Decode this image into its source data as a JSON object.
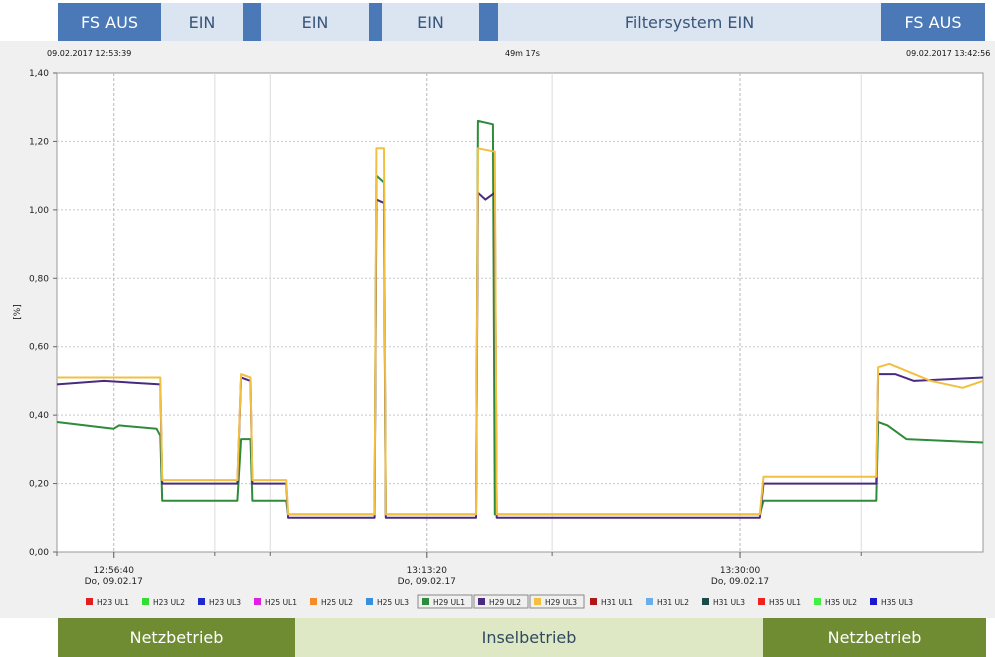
{
  "top_bar": [
    {
      "label": "FS AUS",
      "style": "dark"
    },
    {
      "label": "EIN",
      "style": "light"
    },
    {
      "label": "EIN",
      "style": "light"
    },
    {
      "label": "EIN",
      "style": "light"
    },
    {
      "label": "Filtersystem EIN",
      "style": "light"
    },
    {
      "label": "FS AUS",
      "style": "dark"
    }
  ],
  "bottom_bar": [
    {
      "label": "Netzbetrieb",
      "style": "green"
    },
    {
      "label": "Inselbetrieb",
      "style": "lgreen"
    },
    {
      "label": "Netzbetrieb",
      "style": "green"
    }
  ],
  "header": {
    "start": "09.02.2017 12:53:39",
    "duration": "49m 17s",
    "end": "09.02.2017 13:42:56"
  },
  "chart_data": {
    "type": "line",
    "ylabel": "[%]",
    "ylim": [
      0,
      1.4
    ],
    "y_ticks": [
      "0,00",
      "0,20",
      "0,40",
      "0,60",
      "0,80",
      "1,00",
      "1,20",
      "1,40"
    ],
    "x_unit": "minutes since 12:53:39",
    "xlim": [
      0,
      49.28
    ],
    "x_ticks": [
      {
        "time": "12:56:40",
        "date": "Do, 09.02.17",
        "x": 3.02
      },
      {
        "time": "13:13:20",
        "date": "Do, 09.02.17",
        "x": 19.68
      },
      {
        "time": "13:30:00",
        "date": "Do, 09.02.17",
        "x": 36.35
      }
    ],
    "minor_x": [
      0,
      8.4,
      11.35,
      26.35,
      42.8
    ],
    "series": [
      {
        "name": "H29 UL1",
        "color": "#2e8b3a",
        "x": [
          0,
          3,
          3.3,
          5.3,
          5.5,
          5.6,
          9.6,
          9.8,
          10.3,
          10.4,
          12.2,
          12.3,
          16.9,
          17,
          17.4,
          17.5,
          22.3,
          22.4,
          23.2,
          23.3,
          37.4,
          37.6,
          43.6,
          43.7,
          44.2,
          45.2,
          49.28
        ],
        "y": [
          0.38,
          0.36,
          0.37,
          0.36,
          0.34,
          0.15,
          0.15,
          0.33,
          0.33,
          0.15,
          0.15,
          0.11,
          0.11,
          1.1,
          1.08,
          0.11,
          0.11,
          1.26,
          1.25,
          0.11,
          0.11,
          0.15,
          0.15,
          0.38,
          0.37,
          0.33,
          0.32
        ]
      },
      {
        "name": "H29 UL2",
        "color": "#4a2a80",
        "x": [
          0,
          2.5,
          5.5,
          5.6,
          9.6,
          9.8,
          10.3,
          10.4,
          12.2,
          12.3,
          16.9,
          17,
          17.4,
          17.5,
          22.3,
          22.4,
          22.8,
          23.3,
          23.4,
          37.4,
          37.6,
          43.6,
          43.7,
          44.6,
          45.6,
          49.28
        ],
        "y": [
          0.49,
          0.5,
          0.49,
          0.2,
          0.2,
          0.51,
          0.5,
          0.2,
          0.2,
          0.1,
          0.1,
          1.03,
          1.02,
          0.1,
          0.1,
          1.05,
          1.03,
          1.05,
          0.1,
          0.1,
          0.2,
          0.2,
          0.52,
          0.52,
          0.5,
          0.51
        ]
      },
      {
        "name": "H29 UL3",
        "color": "#f2c040",
        "x": [
          0,
          2.5,
          5.5,
          5.6,
          9.6,
          9.8,
          10.3,
          10.4,
          12.2,
          12.3,
          16.9,
          17,
          17.4,
          17.5,
          22.3,
          22.4,
          23.3,
          23.4,
          37.4,
          37.6,
          43.6,
          43.7,
          44.3,
          46.5,
          48.2,
          49.28
        ],
        "y": [
          0.51,
          0.51,
          0.51,
          0.21,
          0.21,
          0.52,
          0.51,
          0.21,
          0.21,
          0.11,
          0.11,
          1.18,
          1.18,
          0.11,
          0.11,
          1.18,
          1.17,
          0.11,
          0.11,
          0.22,
          0.22,
          0.54,
          0.55,
          0.5,
          0.48,
          0.5
        ]
      }
    ],
    "legend": [
      {
        "name": "H23 UL1",
        "color": "#e02020",
        "boxed": false
      },
      {
        "name": "H23 UL2",
        "color": "#33dd33",
        "boxed": false
      },
      {
        "name": "H23 UL3",
        "color": "#1a2acc",
        "boxed": false
      },
      {
        "name": "H25 UL1",
        "color": "#e020e0",
        "boxed": false
      },
      {
        "name": "H25 UL2",
        "color": "#f28c28",
        "boxed": false
      },
      {
        "name": "H25 UL3",
        "color": "#3a8ee0",
        "boxed": false
      },
      {
        "name": "H29 UL1",
        "color": "#2e8b3a",
        "boxed": true
      },
      {
        "name": "H29 UL2",
        "color": "#4a2a80",
        "boxed": true
      },
      {
        "name": "H29 UL3",
        "color": "#f2c040",
        "boxed": true
      },
      {
        "name": "H31 UL1",
        "color": "#b01818",
        "boxed": false
      },
      {
        "name": "H31 UL2",
        "color": "#6aaee8",
        "boxed": false
      },
      {
        "name": "H31 UL3",
        "color": "#1a4a4a",
        "boxed": false
      },
      {
        "name": "H35 UL1",
        "color": "#ee2020",
        "boxed": false
      },
      {
        "name": "H35 UL2",
        "color": "#44ee44",
        "boxed": false
      },
      {
        "name": "H35 UL3",
        "color": "#1a1acc",
        "boxed": false
      }
    ]
  }
}
